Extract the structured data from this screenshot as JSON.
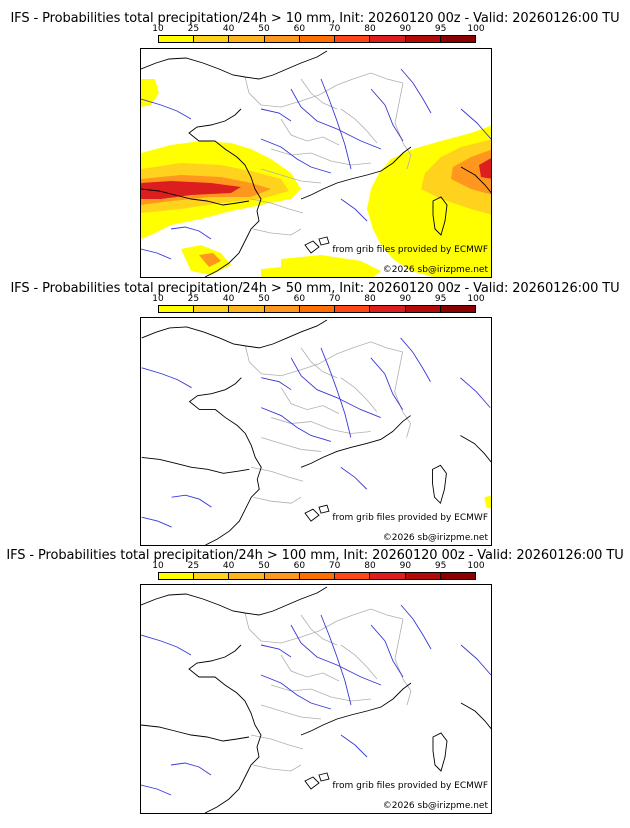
{
  "colors": {
    "scale": [
      "#ffff00",
      "#ffd21e",
      "#ffb41e",
      "#ff961e",
      "#ff6e00",
      "#ff4616",
      "#dc1e1e",
      "#b40a0a",
      "#8c0000",
      "#5a0000"
    ],
    "coast": "#000000",
    "rivers": "#3838d8",
    "borders": "#b0b0b0"
  },
  "scale_ticks": [
    "10",
    "25",
    "40",
    "50",
    "60",
    "70",
    "80",
    "90",
    "95",
    "100"
  ],
  "panels": [
    {
      "title": "IFS - Probabilities total precipitation/24h > 10 mm, Init: 20260120 00z - Valid: 20260126:00 TU",
      "threshold": "10 mm",
      "credit_source": "from grib files provided by ECMWF",
      "credit_copy": "©2026 sb@irizpme.net"
    },
    {
      "title": "IFS - Probabilities total precipitation/24h > 50 mm, Init: 20260120 00z - Valid: 20260126:00 TU",
      "threshold": "50 mm",
      "credit_source": "from grib files provided by ECMWF",
      "credit_copy": "©2026 sb@irizpme.net"
    },
    {
      "title": "IFS - Probabilities total precipitation/24h > 100 mm, Init: 20260120 00z - Valid: 20260126:00 TU",
      "threshold": "100 mm",
      "credit_source": "from grib files provided by ECMWF",
      "credit_copy": "©2026 sb@irizpme.net"
    }
  ]
}
